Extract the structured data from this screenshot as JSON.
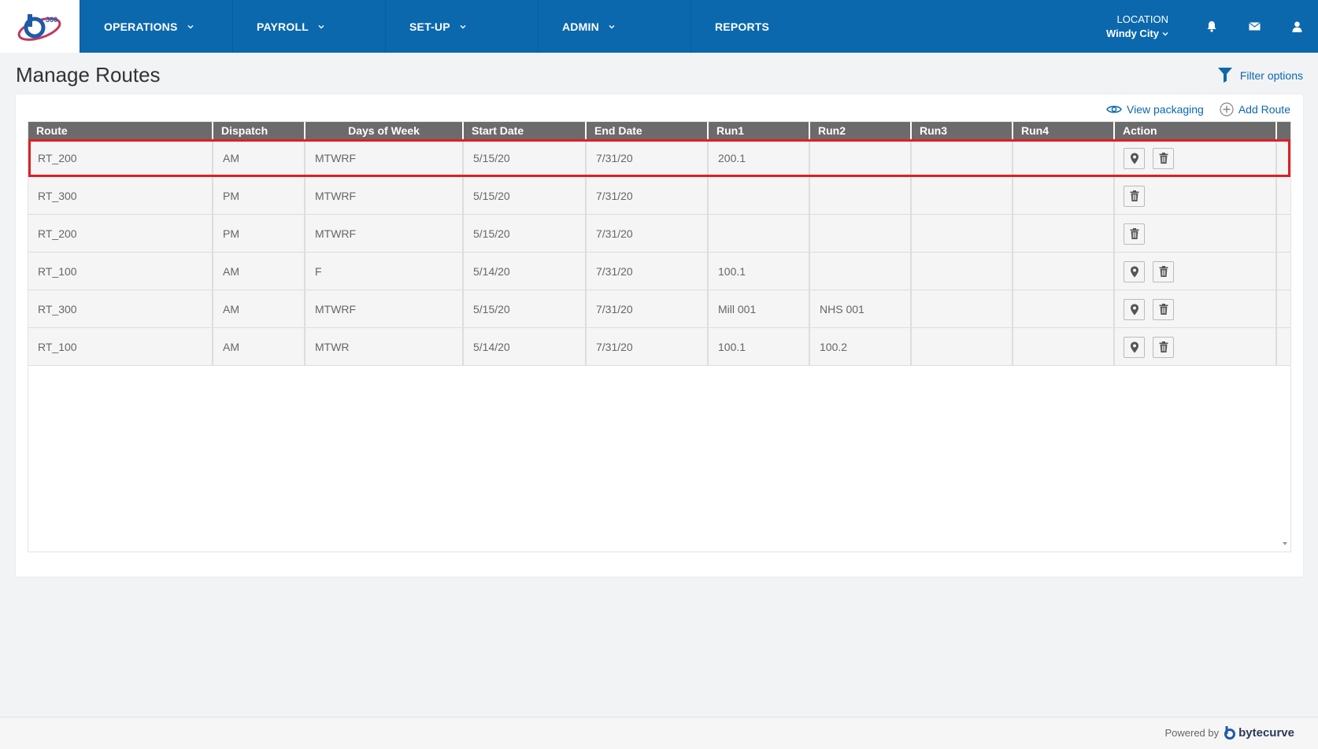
{
  "nav": {
    "items": [
      {
        "label": "OPERATIONS",
        "has_dropdown": true
      },
      {
        "label": "PAYROLL",
        "has_dropdown": true
      },
      {
        "label": "SET-UP",
        "has_dropdown": true
      },
      {
        "label": "ADMIN",
        "has_dropdown": true
      },
      {
        "label": "REPORTS",
        "has_dropdown": false
      }
    ],
    "location_label": "LOCATION",
    "location_value": "Windy City",
    "icons": [
      "bell-icon",
      "mail-icon",
      "user-icon"
    ],
    "logo_text": "360",
    "bg_color": "#0b68ad"
  },
  "page": {
    "title": "Manage Routes",
    "filter_label": "Filter options"
  },
  "panel": {
    "view_packaging_label": "View packaging",
    "add_route_label": "Add Route"
  },
  "table": {
    "columns": [
      "Route",
      "Dispatch",
      "Days of Week",
      "Start Date",
      "End Date",
      "Run1",
      "Run2",
      "Run3",
      "Run4",
      "Action"
    ],
    "rows": [
      {
        "route": "RT_200",
        "dispatch": "AM",
        "days": "MTWRF",
        "start": "5/15/20",
        "end": "7/31/20",
        "run1": "200.1",
        "run2": "",
        "run3": "",
        "run4": "",
        "actions": [
          "location-icon",
          "trash-icon"
        ],
        "selected": true
      },
      {
        "route": "RT_300",
        "dispatch": "PM",
        "days": "MTWRF",
        "start": "5/15/20",
        "end": "7/31/20",
        "run1": "",
        "run2": "",
        "run3": "",
        "run4": "",
        "actions": [
          "trash-icon"
        ],
        "selected": false
      },
      {
        "route": "RT_200",
        "dispatch": "PM",
        "days": "MTWRF",
        "start": "5/15/20",
        "end": "7/31/20",
        "run1": "",
        "run2": "",
        "run3": "",
        "run4": "",
        "actions": [
          "trash-icon"
        ],
        "selected": false
      },
      {
        "route": "RT_100",
        "dispatch": "AM",
        "days": "F",
        "start": "5/14/20",
        "end": "7/31/20",
        "run1": "100.1",
        "run2": "",
        "run3": "",
        "run4": "",
        "actions": [
          "location-icon",
          "trash-icon"
        ],
        "selected": false
      },
      {
        "route": "RT_300",
        "dispatch": "AM",
        "days": "MTWRF",
        "start": "5/15/20",
        "end": "7/31/20",
        "run1": "Mill 001",
        "run2": "NHS 001",
        "run3": "",
        "run4": "",
        "actions": [
          "location-icon",
          "trash-icon"
        ],
        "selected": false
      },
      {
        "route": "RT_100",
        "dispatch": "AM",
        "days": "MTWR",
        "start": "5/14/20",
        "end": "7/31/20",
        "run1": "100.1",
        "run2": "100.2",
        "run3": "",
        "run4": "",
        "actions": [
          "location-icon",
          "trash-icon"
        ],
        "selected": false
      }
    ],
    "highlight_color": "#e01e25"
  },
  "footer": {
    "powered_by": "Powered by",
    "brand": "bytecurve"
  }
}
